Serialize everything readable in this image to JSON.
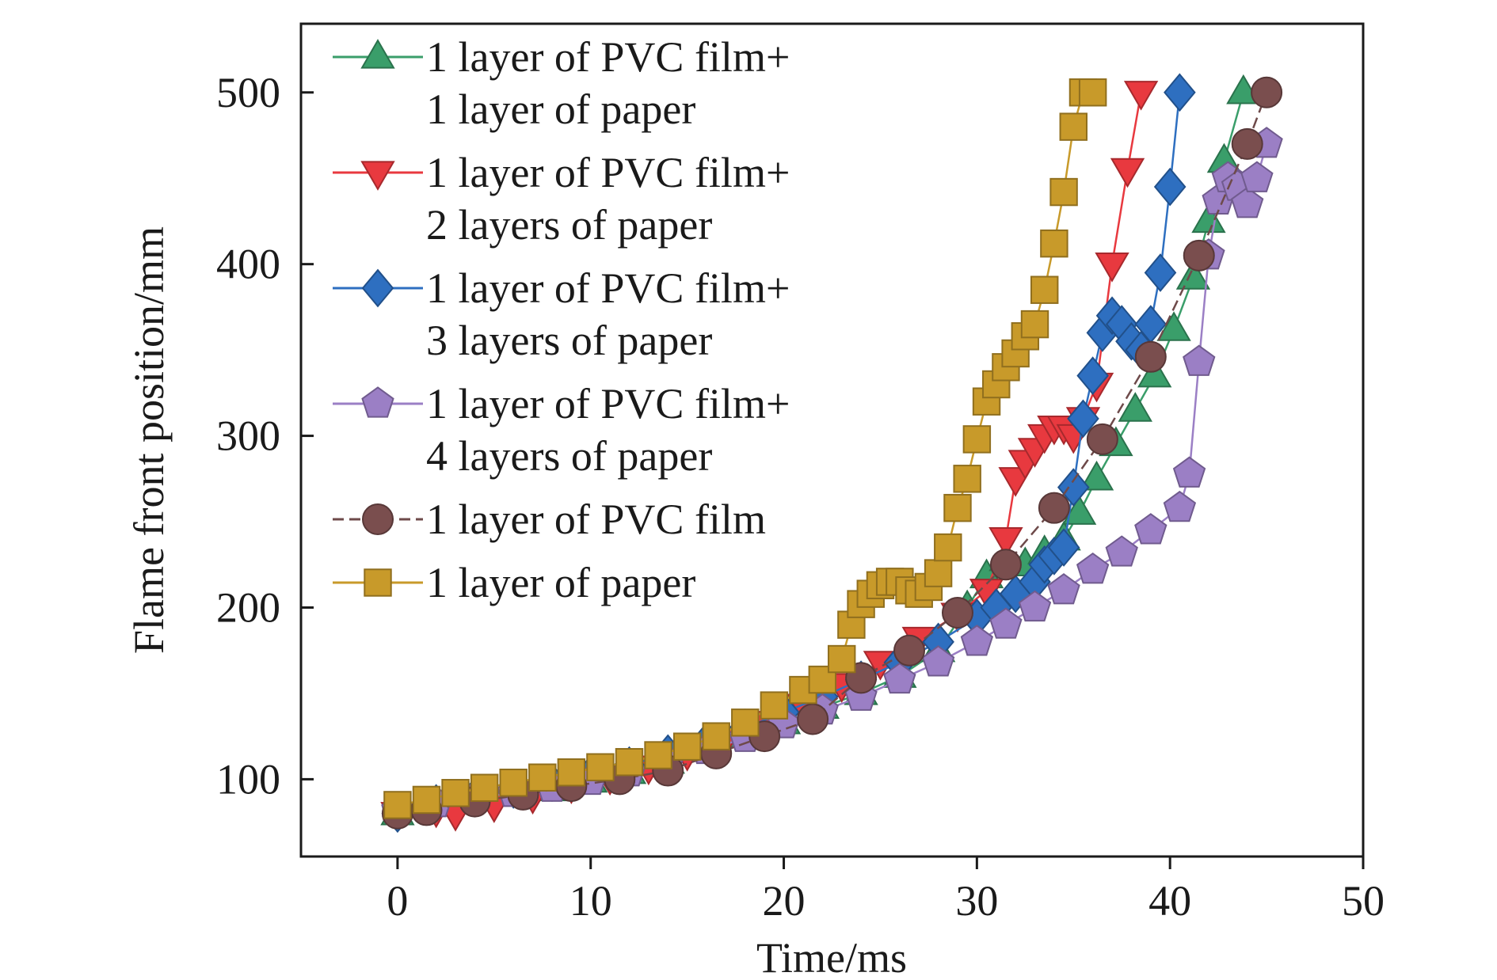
{
  "chart_data": {
    "type": "line",
    "xlabel": "Time/ms",
    "ylabel": "Flame front position/mm",
    "xlim": [
      -5,
      50
    ],
    "ylim": [
      55,
      540
    ],
    "xticks": [
      0,
      10,
      20,
      30,
      40,
      50
    ],
    "yticks": [
      100,
      200,
      300,
      400,
      500
    ],
    "x_tick_labels": [
      "0",
      "10",
      "20",
      "30",
      "40",
      "50"
    ],
    "y_tick_labels": [
      "100",
      "200",
      "300",
      "400",
      "500"
    ],
    "grid": false,
    "legend_position": "top-left",
    "series": [
      {
        "name": "1 layer of PVC film+\n1 layer of paper",
        "color": "#3a9e6a",
        "marker": "triangle-up",
        "x": [
          0,
          2,
          4,
          6,
          8,
          10,
          12,
          14,
          16,
          18,
          20,
          22,
          24,
          26,
          28,
          29.5,
          30.5,
          31.5,
          32.5,
          33.5,
          34.5,
          35.3,
          36.2,
          37.2,
          38.2,
          39.2,
          40.2,
          41.2,
          42,
          42.8,
          43.8
        ],
        "y": [
          80,
          85,
          88,
          91,
          94,
          99,
          104,
          110,
          118,
          125,
          133,
          142,
          150,
          160,
          175,
          200,
          218,
          228,
          225,
          232,
          240,
          255,
          275,
          295,
          315,
          335,
          362,
          392,
          425,
          460,
          500
        ]
      },
      {
        "name": "1 layer of PVC film+\n2 layers of paper",
        "color": "#e8393f",
        "marker": "triangle-down",
        "x": [
          0,
          2,
          3,
          5,
          7,
          9,
          11,
          13,
          15,
          17,
          19,
          21,
          23,
          25,
          27,
          29,
          30.5,
          31.5,
          32,
          32.5,
          33,
          33.5,
          34,
          34.5,
          35,
          35.5,
          36.2,
          37,
          37.8,
          38.5
        ],
        "y": [
          80,
          82,
          80,
          85,
          90,
          96,
          101,
          107,
          115,
          124,
          133,
          143,
          155,
          168,
          182,
          196,
          210,
          240,
          275,
          285,
          292,
          300,
          305,
          305,
          300,
          310,
          330,
          400,
          455,
          500
        ]
      },
      {
        "name": "1 layer of PVC film+\n3 layers of paper",
        "color": "#2e6fc0",
        "marker": "diamond",
        "x": [
          0,
          2,
          4,
          6,
          8,
          10,
          12,
          14,
          16,
          18,
          20,
          22,
          24,
          26,
          28,
          30,
          31,
          32,
          33,
          33.5,
          34,
          34.5,
          35,
          35.5,
          36,
          36.5,
          37,
          37.5,
          38,
          38.5,
          39,
          39.5,
          40,
          40.5
        ],
        "y": [
          80,
          86,
          90,
          94,
          98,
          103,
          108,
          115,
          122,
          130,
          139,
          148,
          158,
          168,
          180,
          194,
          200,
          208,
          215,
          225,
          230,
          235,
          270,
          310,
          335,
          360,
          370,
          365,
          355,
          350,
          365,
          395,
          445,
          500
        ]
      },
      {
        "name": "1 layer of PVC film+\n4 layers of paper",
        "color": "#9b7fc5",
        "marker": "pentagon",
        "x": [
          0,
          2,
          4,
          6,
          8,
          10,
          12,
          14,
          16,
          18,
          20,
          22,
          24,
          26,
          28,
          30,
          31.5,
          33,
          34.5,
          36,
          37.5,
          39,
          40.5,
          41,
          41.5,
          42,
          42.5,
          43,
          43.5,
          44,
          44.5,
          45
        ],
        "y": [
          82,
          86,
          89,
          92,
          95,
          99,
          104,
          110,
          117,
          124,
          132,
          140,
          148,
          158,
          168,
          180,
          190,
          200,
          210,
          222,
          232,
          245,
          258,
          278,
          343,
          405,
          437,
          450,
          445,
          435,
          450,
          470
        ]
      },
      {
        "name": "1 layer of PVC film",
        "color": "#7a4e4e",
        "marker": "circle",
        "x": [
          0,
          1.5,
          4,
          6.5,
          9,
          11.5,
          14,
          16.5,
          19,
          21.5,
          24,
          26.5,
          29,
          31.5,
          34,
          36.5,
          39,
          41.5,
          44,
          45
        ],
        "y": [
          80,
          82,
          87,
          91,
          96,
          100,
          105,
          115,
          125,
          135,
          159,
          175,
          197,
          225,
          258,
          298,
          346,
          405,
          470,
          500
        ]
      },
      {
        "name": "1 layer of paper",
        "color": "#c89a2a",
        "marker": "square",
        "x": [
          0,
          1.5,
          3,
          4.5,
          6,
          7.5,
          9,
          10.5,
          12,
          13.5,
          15,
          16.5,
          18,
          19.5,
          21,
          22,
          23,
          23.5,
          24,
          24.5,
          25,
          25.5,
          26,
          26.5,
          27,
          27.5,
          28,
          28.5,
          29,
          29.5,
          30,
          30.5,
          31,
          31.5,
          32,
          32.5,
          33,
          33.5,
          34,
          34.5,
          35,
          35.5,
          36
        ],
        "y": [
          85,
          88,
          92,
          95,
          98,
          101,
          104,
          107,
          110,
          114,
          119,
          125,
          133,
          143,
          152,
          158,
          170,
          190,
          202,
          208,
          213,
          215,
          215,
          210,
          208,
          212,
          220,
          235,
          258,
          275,
          298,
          320,
          330,
          340,
          348,
          358,
          365,
          385,
          412,
          442,
          480,
          500,
          500
        ]
      }
    ]
  }
}
